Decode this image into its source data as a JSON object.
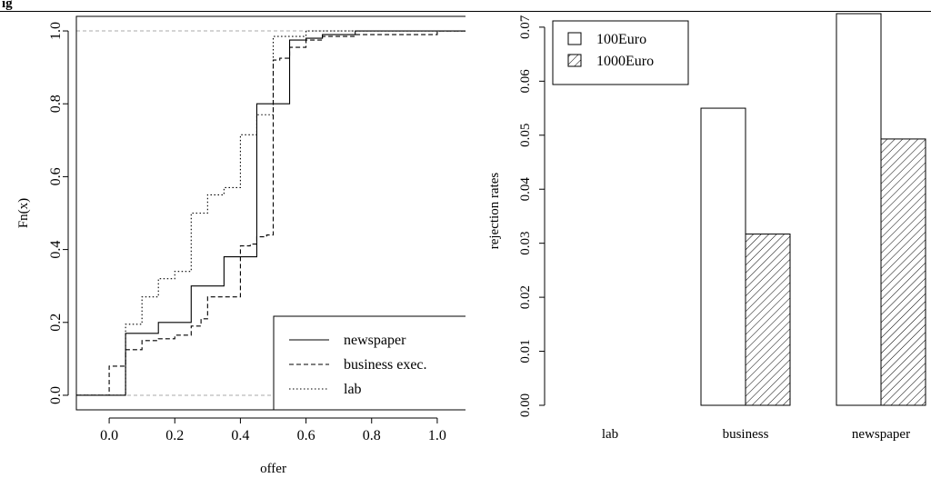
{
  "caption": "ig",
  "colors": {
    "axis": "#000000",
    "reference_line": "#aaaaaa",
    "bar_fill": "#ffffff"
  },
  "chart_data": [
    {
      "type": "line",
      "xlabel": "offer",
      "ylabel": "Fn(x)",
      "xlim": [
        -0.1,
        1.1
      ],
      "ylim": [
        -0.04,
        1.04
      ],
      "xticks": [
        "0.0",
        "0.2",
        "0.4",
        "0.6",
        "0.8",
        "1.0"
      ],
      "yticks": [
        "0.0",
        "0.2",
        "0.4",
        "0.6",
        "0.8",
        "1.0"
      ],
      "reference_lines": [
        0,
        1
      ],
      "legend_position": "bottom-right",
      "series": [
        {
          "name": "newspaper",
          "line_style": "solid",
          "steps": [
            [
              0.05,
              0.17
            ],
            [
              0.15,
              0.2
            ],
            [
              0.25,
              0.3
            ],
            [
              0.35,
              0.38
            ],
            [
              0.45,
              0.8
            ],
            [
              0.55,
              0.975
            ],
            [
              0.6,
              0.98
            ],
            [
              0.65,
              0.99
            ],
            [
              0.75,
              1.0
            ]
          ]
        },
        {
          "name": "business exec.",
          "line_style": "dashed",
          "steps": [
            [
              0.0,
              0.08
            ],
            [
              0.05,
              0.125
            ],
            [
              0.1,
              0.15
            ],
            [
              0.15,
              0.155
            ],
            [
              0.2,
              0.165
            ],
            [
              0.25,
              0.19
            ],
            [
              0.28,
              0.21
            ],
            [
              0.3,
              0.27
            ],
            [
              0.4,
              0.41
            ],
            [
              0.43,
              0.415
            ],
            [
              0.45,
              0.435
            ],
            [
              0.48,
              0.44
            ],
            [
              0.5,
              0.92
            ],
            [
              0.52,
              0.925
            ],
            [
              0.55,
              0.955
            ],
            [
              0.6,
              0.975
            ],
            [
              0.65,
              0.985
            ],
            [
              0.75,
              0.99
            ],
            [
              1.0,
              1.0
            ]
          ]
        },
        {
          "name": "lab",
          "line_style": "dotted",
          "steps": [
            [
              0.05,
              0.195
            ],
            [
              0.1,
              0.27
            ],
            [
              0.15,
              0.32
            ],
            [
              0.2,
              0.34
            ],
            [
              0.25,
              0.5
            ],
            [
              0.3,
              0.55
            ],
            [
              0.35,
              0.57
            ],
            [
              0.4,
              0.715
            ],
            [
              0.45,
              0.77
            ],
            [
              0.5,
              0.985
            ],
            [
              0.6,
              1.0
            ]
          ]
        }
      ]
    },
    {
      "type": "bar",
      "ylabel": "rejection rates",
      "categories": [
        "lab",
        "business",
        "newspaper"
      ],
      "ylim": [
        0,
        0.072
      ],
      "yticks": [
        "0.00",
        "0.01",
        "0.02",
        "0.03",
        "0.04",
        "0.05",
        "0.06",
        "0.07"
      ],
      "legend_position": "top-left",
      "series": [
        {
          "name": "100Euro",
          "fill": "plain",
          "values": [
            0.0,
            0.055,
            0.0725
          ]
        },
        {
          "name": "1000Euro",
          "fill": "hatched",
          "values": [
            0.0,
            0.0317,
            0.0493
          ]
        }
      ]
    }
  ]
}
